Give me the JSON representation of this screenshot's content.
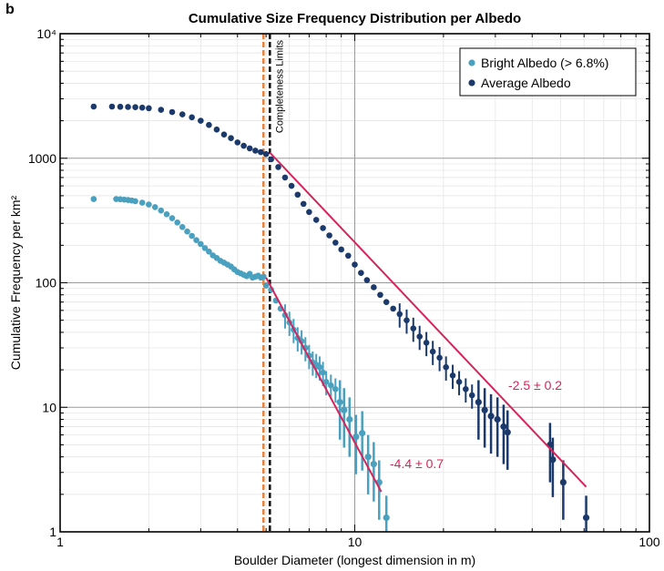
{
  "panel_label": "b",
  "chart_data": {
    "type": "scatter",
    "title": "Cumulative Size Frequency Distribution per Albedo",
    "xlabel": "Boulder Diameter (longest dimension in m)",
    "ylabel": "Cumulative Frequency per km²",
    "x_scale": "log",
    "y_scale": "log",
    "xlim": [
      1,
      100
    ],
    "ylim": [
      1,
      10000
    ],
    "x_tick_labels": [
      "1",
      "10",
      "100"
    ],
    "y_tick_labels": [
      "1",
      "10",
      "100",
      "1000",
      "10⁴"
    ],
    "grid": true,
    "legend_position": "top-right",
    "completeness_label": "Completeness Limits",
    "completeness_limits": [
      {
        "series": "Bright Albedo (> 6.8%)",
        "x": 4.9,
        "color": "#e8813a"
      },
      {
        "series": "Average Albedo",
        "x": 5.15,
        "color": "#000000"
      }
    ],
    "series": [
      {
        "name": "Bright Albedo (> 6.8%)",
        "color": "#4aa0bf",
        "x": [
          1.3,
          1.55,
          1.6,
          1.65,
          1.7,
          1.75,
          1.8,
          1.9,
          2.0,
          2.1,
          2.2,
          2.3,
          2.4,
          2.5,
          2.6,
          2.7,
          2.8,
          2.9,
          3.0,
          3.1,
          3.2,
          3.3,
          3.4,
          3.5,
          3.6,
          3.7,
          3.8,
          3.9,
          4.0,
          4.1,
          4.2,
          4.3,
          4.4,
          4.5,
          4.6,
          4.7,
          4.8,
          4.9,
          5.0,
          5.2,
          5.4,
          5.6,
          5.8,
          6.0,
          6.2,
          6.4,
          6.6,
          6.8,
          7.0,
          7.2,
          7.4,
          7.6,
          7.8,
          8.0,
          8.3,
          8.6,
          8.9,
          9.2,
          9.6,
          10.1,
          10.6,
          11.1,
          11.6,
          12.1,
          12.8
        ],
        "y": [
          470,
          470,
          468,
          465,
          462,
          458,
          452,
          440,
          425,
          405,
          380,
          355,
          330,
          305,
          280,
          258,
          238,
          220,
          205,
          190,
          178,
          166,
          158,
          150,
          145,
          140,
          135,
          128,
          122,
          119,
          116,
          113,
          118,
          110,
          112,
          114,
          110,
          112,
          95,
          88,
          72,
          62,
          55,
          48,
          42,
          36,
          34,
          30,
          26,
          23,
          22,
          21,
          19,
          16,
          15,
          14,
          11,
          9.5,
          8,
          5.8,
          6.2,
          4,
          3.5,
          2.5,
          1.3
        ]
      },
      {
        "name": "Average Albedo",
        "color": "#1b3a6b",
        "x": [
          1.3,
          1.5,
          1.6,
          1.7,
          1.8,
          1.9,
          2.0,
          2.2,
          2.4,
          2.6,
          2.8,
          3.0,
          3.2,
          3.4,
          3.6,
          3.8,
          4.0,
          4.2,
          4.4,
          4.6,
          4.8,
          5.0,
          5.2,
          5.5,
          5.8,
          6.1,
          6.4,
          6.7,
          7.0,
          7.4,
          7.8,
          8.2,
          8.6,
          9.0,
          9.5,
          10.0,
          10.5,
          11.0,
          11.6,
          12.2,
          12.8,
          13.5,
          14.2,
          15.0,
          15.8,
          16.6,
          17.5,
          18.4,
          19.4,
          20.4,
          21.5,
          22.6,
          23.8,
          25.0,
          26.3,
          27.6,
          29.0,
          30.5,
          32.0,
          33.0,
          46.0,
          47.0,
          51.0,
          61.0
        ],
        "y": [
          2600,
          2600,
          2590,
          2580,
          2570,
          2550,
          2520,
          2450,
          2350,
          2250,
          2130,
          2000,
          1850,
          1700,
          1550,
          1450,
          1340,
          1260,
          1200,
          1150,
          1120,
          1080,
          980,
          850,
          700,
          600,
          510,
          430,
          370,
          320,
          275,
          240,
          210,
          185,
          165,
          140,
          120,
          105,
          92,
          80,
          70,
          62,
          56,
          50,
          43,
          37,
          33,
          28,
          25,
          21,
          18,
          16,
          14,
          12.5,
          11,
          9.5,
          8.5,
          8,
          7,
          6.3,
          5,
          3.8,
          2.5,
          1.3
        ]
      }
    ],
    "fits": [
      {
        "series": "Bright Albedo (> 6.8%)",
        "label": "-4.4 ± 0.7",
        "slope": -4.4,
        "x_start": 5.0,
        "x_end": 12.3,
        "y_start": 110,
        "color": "#d6245a"
      },
      {
        "series": "Average Albedo",
        "label": "-2.5 ± 0.2",
        "slope": -2.5,
        "x_start": 5.15,
        "x_end": 61.0,
        "y_start": 1110,
        "color": "#d6245a"
      }
    ]
  }
}
